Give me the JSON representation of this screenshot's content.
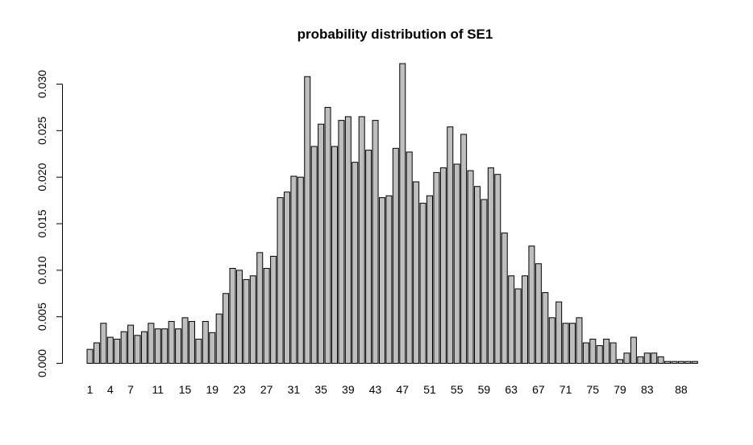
{
  "chart_data": {
    "type": "bar",
    "title": "probability distribution of  SE1",
    "xlabel": "",
    "ylabel": "",
    "ylim": [
      0,
      0.032
    ],
    "y_ticks": [
      "0.000",
      "0.005",
      "0.010",
      "0.015",
      "0.020",
      "0.025",
      "0.030"
    ],
    "y_tick_values": [
      0,
      0.005,
      0.01,
      0.015,
      0.02,
      0.025,
      0.03
    ],
    "x_tick_labels": [
      "1",
      "4",
      "7",
      "11",
      "15",
      "19",
      "23",
      "27",
      "31",
      "35",
      "39",
      "43",
      "47",
      "51",
      "55",
      "59",
      "63",
      "67",
      "71",
      "75",
      "79",
      "83",
      "88"
    ],
    "x_tick_bar_index": [
      0,
      3,
      6,
      10,
      14,
      18,
      22,
      26,
      30,
      34,
      38,
      42,
      46,
      50,
      54,
      58,
      62,
      66,
      70,
      74,
      78,
      82,
      87
    ],
    "values": [
      0.0015,
      0.0022,
      0.0043,
      0.0028,
      0.0026,
      0.0034,
      0.0041,
      0.003,
      0.0034,
      0.0043,
      0.0037,
      0.0037,
      0.0045,
      0.0037,
      0.0049,
      0.0045,
      0.0026,
      0.0045,
      0.0033,
      0.0053,
      0.0075,
      0.0102,
      0.01,
      0.009,
      0.0094,
      0.0119,
      0.0102,
      0.0115,
      0.0178,
      0.0184,
      0.0201,
      0.02,
      0.0308,
      0.0233,
      0.0257,
      0.0275,
      0.0233,
      0.0261,
      0.0265,
      0.0216,
      0.0265,
      0.0229,
      0.0261,
      0.0178,
      0.018,
      0.0231,
      0.0322,
      0.0227,
      0.0195,
      0.0172,
      0.018,
      0.0205,
      0.021,
      0.0254,
      0.0214,
      0.0246,
      0.0207,
      0.019,
      0.0176,
      0.021,
      0.0203,
      0.014,
      0.0094,
      0.008,
      0.0094,
      0.0126,
      0.0107,
      0.0076,
      0.0049,
      0.0066,
      0.0043,
      0.0043,
      0.0049,
      0.0022,
      0.0026,
      0.0019,
      0.0026,
      0.0022,
      0.0004,
      0.0011,
      0.0028,
      0.0007,
      0.0011,
      0.0011,
      0.0007,
      0.0002,
      0.0002,
      0.0002,
      0.0002,
      0.0002
    ],
    "bar_color": "#bebebe",
    "grid": false
  }
}
